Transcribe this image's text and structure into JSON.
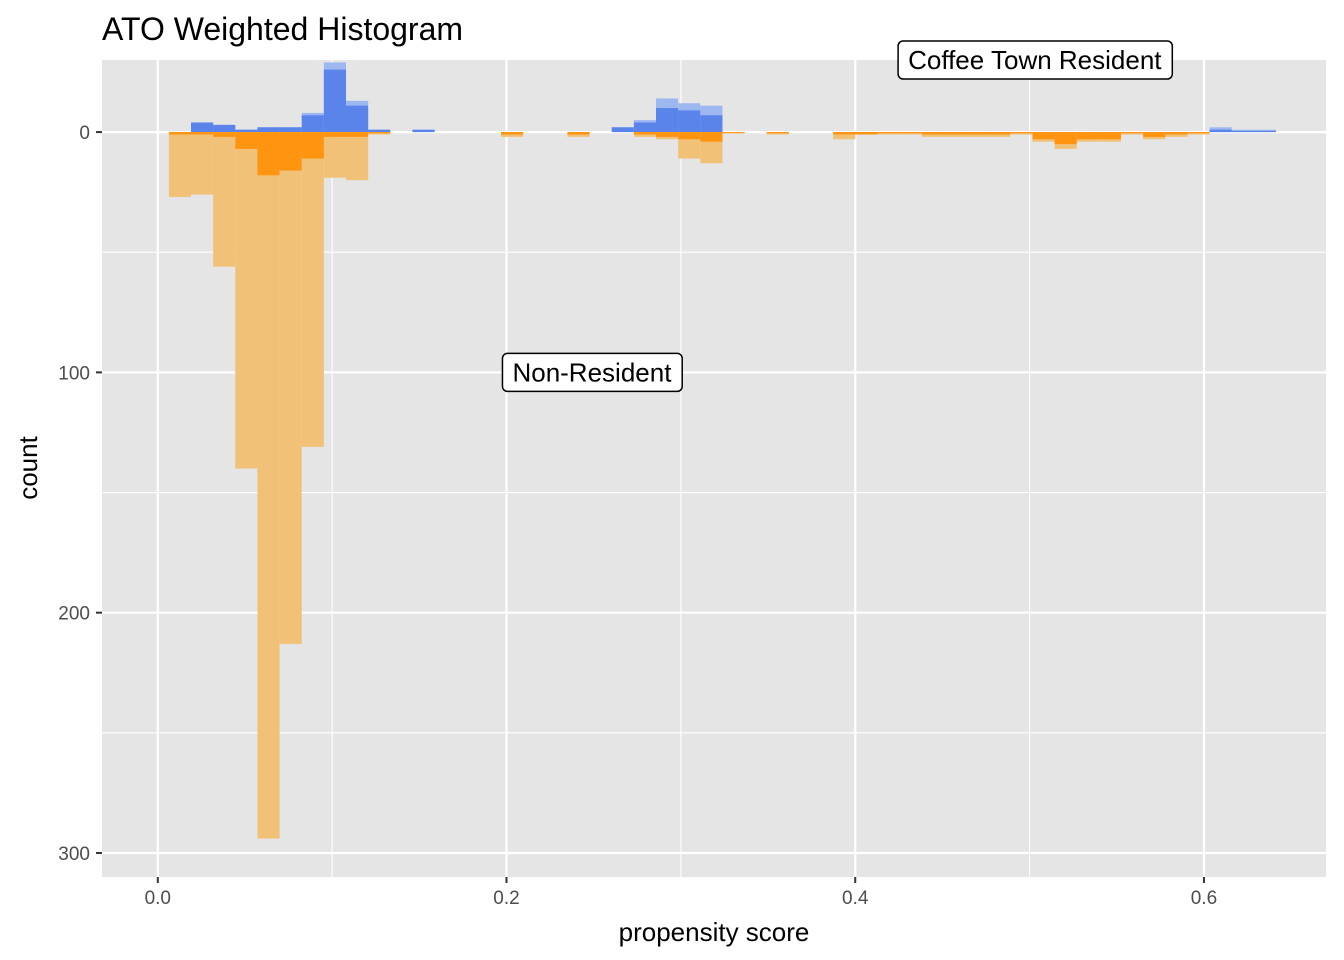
{
  "chart_data": {
    "type": "histogram",
    "title": "ATO Weighted Histogram",
    "xlabel": "propensity score",
    "ylabel": "count",
    "xlim": [
      -0.032,
      0.67
    ],
    "ylim": [
      -30,
      310
    ],
    "y_reversed": true,
    "x_ticks": [
      {
        "value": 0.0,
        "label": "0.0"
      },
      {
        "value": 0.2,
        "label": "0.2"
      },
      {
        "value": 0.4,
        "label": "0.4"
      },
      {
        "value": 0.6,
        "label": "0.6"
      }
    ],
    "y_ticks": [
      {
        "value": 0,
        "label": "0"
      },
      {
        "value": 100,
        "label": "100"
      },
      {
        "value": 200,
        "label": "200"
      },
      {
        "value": 300,
        "label": "300"
      }
    ],
    "grid": true,
    "bin_width": 0.0127,
    "bin_start": 0.0063,
    "colors": {
      "panel": "#e5e5e5",
      "grid_major": "#ffffff",
      "resident_unweighted": "#9db7f0",
      "resident_weighted": "#5b84ea",
      "nonresident_unweighted": "#f2c178",
      "nonresident_weighted": "#ff9411"
    },
    "series": [
      {
        "group": "resident_unweighted",
        "direction": "up",
        "bins": [
          {
            "x": 0.0254,
            "count": 4
          },
          {
            "x": 0.0381,
            "count": 3
          },
          {
            "x": 0.0508,
            "count": 1
          },
          {
            "x": 0.0635,
            "count": 2
          },
          {
            "x": 0.0762,
            "count": 2
          },
          {
            "x": 0.0889,
            "count": 8
          },
          {
            "x": 0.1016,
            "count": 29
          },
          {
            "x": 0.1143,
            "count": 13
          },
          {
            "x": 0.127,
            "count": 1
          },
          {
            "x": 0.1524,
            "count": 1
          },
          {
            "x": 0.2667,
            "count": 2
          },
          {
            "x": 0.2794,
            "count": 5
          },
          {
            "x": 0.2921,
            "count": 14
          },
          {
            "x": 0.3048,
            "count": 12
          },
          {
            "x": 0.3175,
            "count": 11
          },
          {
            "x": 0.6096,
            "count": 2
          },
          {
            "x": 0.6223,
            "count": 1
          },
          {
            "x": 0.635,
            "count": 1
          }
        ]
      },
      {
        "group": "resident_weighted",
        "direction": "up",
        "bins": [
          {
            "x": 0.0254,
            "count": 4
          },
          {
            "x": 0.0381,
            "count": 3
          },
          {
            "x": 0.0508,
            "count": 1
          },
          {
            "x": 0.0635,
            "count": 2
          },
          {
            "x": 0.0762,
            "count": 2
          },
          {
            "x": 0.0889,
            "count": 7
          },
          {
            "x": 0.1016,
            "count": 26
          },
          {
            "x": 0.1143,
            "count": 11
          },
          {
            "x": 0.127,
            "count": 1
          },
          {
            "x": 0.1524,
            "count": 1
          },
          {
            "x": 0.2667,
            "count": 2
          },
          {
            "x": 0.2794,
            "count": 4
          },
          {
            "x": 0.2921,
            "count": 10
          },
          {
            "x": 0.3048,
            "count": 9
          },
          {
            "x": 0.3175,
            "count": 7
          },
          {
            "x": 0.6096,
            "count": 1
          },
          {
            "x": 0.6223,
            "count": 0.5
          },
          {
            "x": 0.635,
            "count": 0.5
          }
        ]
      },
      {
        "group": "nonresident_unweighted",
        "direction": "down",
        "bins": [
          {
            "x": 0.0127,
            "count": 27
          },
          {
            "x": 0.0254,
            "count": 26
          },
          {
            "x": 0.0381,
            "count": 56
          },
          {
            "x": 0.0508,
            "count": 140
          },
          {
            "x": 0.0635,
            "count": 294
          },
          {
            "x": 0.0762,
            "count": 213
          },
          {
            "x": 0.0889,
            "count": 131
          },
          {
            "x": 0.1016,
            "count": 19
          },
          {
            "x": 0.1143,
            "count": 20
          },
          {
            "x": 0.127,
            "count": 1
          },
          {
            "x": 0.2032,
            "count": 2
          },
          {
            "x": 0.2413,
            "count": 2
          },
          {
            "x": 0.2794,
            "count": 2
          },
          {
            "x": 0.2921,
            "count": 3
          },
          {
            "x": 0.3048,
            "count": 11
          },
          {
            "x": 0.3175,
            "count": 13
          },
          {
            "x": 0.3556,
            "count": 1
          },
          {
            "x": 0.3937,
            "count": 3
          },
          {
            "x": 0.4064,
            "count": 1
          },
          {
            "x": 0.4191,
            "count": 1
          },
          {
            "x": 0.4318,
            "count": 1
          },
          {
            "x": 0.4445,
            "count": 2
          },
          {
            "x": 0.4572,
            "count": 2
          },
          {
            "x": 0.4699,
            "count": 2
          },
          {
            "x": 0.4826,
            "count": 2
          },
          {
            "x": 0.4953,
            "count": 1
          },
          {
            "x": 0.508,
            "count": 4
          },
          {
            "x": 0.5207,
            "count": 7
          },
          {
            "x": 0.5334,
            "count": 4
          },
          {
            "x": 0.5461,
            "count": 4
          },
          {
            "x": 0.5588,
            "count": 1
          },
          {
            "x": 0.5715,
            "count": 3
          },
          {
            "x": 0.5842,
            "count": 2
          },
          {
            "x": 0.5969,
            "count": 1
          }
        ]
      },
      {
        "group": "nonresident_weighted",
        "direction": "down",
        "bins": [
          {
            "x": 0.0127,
            "count": 1
          },
          {
            "x": 0.0254,
            "count": 1
          },
          {
            "x": 0.0381,
            "count": 2
          },
          {
            "x": 0.0508,
            "count": 7
          },
          {
            "x": 0.0635,
            "count": 18
          },
          {
            "x": 0.0762,
            "count": 16
          },
          {
            "x": 0.0889,
            "count": 11
          },
          {
            "x": 0.1016,
            "count": 2
          },
          {
            "x": 0.1143,
            "count": 2
          },
          {
            "x": 0.127,
            "count": 0.5
          },
          {
            "x": 0.2032,
            "count": 1
          },
          {
            "x": 0.2413,
            "count": 1
          },
          {
            "x": 0.2794,
            "count": 1
          },
          {
            "x": 0.2921,
            "count": 2
          },
          {
            "x": 0.3048,
            "count": 3
          },
          {
            "x": 0.3175,
            "count": 4
          },
          {
            "x": 0.3302,
            "count": 0.5
          },
          {
            "x": 0.3556,
            "count": 0.5
          },
          {
            "x": 0.3937,
            "count": 1
          },
          {
            "x": 0.4064,
            "count": 1
          },
          {
            "x": 0.4191,
            "count": 0.5
          },
          {
            "x": 0.4318,
            "count": 0.5
          },
          {
            "x": 0.4445,
            "count": 1
          },
          {
            "x": 0.4572,
            "count": 1
          },
          {
            "x": 0.4699,
            "count": 1
          },
          {
            "x": 0.4826,
            "count": 1
          },
          {
            "x": 0.4953,
            "count": 0.5
          },
          {
            "x": 0.508,
            "count": 3
          },
          {
            "x": 0.5207,
            "count": 5
          },
          {
            "x": 0.5334,
            "count": 3
          },
          {
            "x": 0.5461,
            "count": 3
          },
          {
            "x": 0.5588,
            "count": 0.5
          },
          {
            "x": 0.5715,
            "count": 2
          },
          {
            "x": 0.5842,
            "count": 1
          },
          {
            "x": 0.5969,
            "count": 0.5
          }
        ]
      }
    ],
    "annotations": [
      {
        "name": "annotation-resident",
        "text": "Coffee Town Resident",
        "x": 0.503,
        "y": -30
      },
      {
        "name": "annotation-nonresident",
        "text": "Non-Resident",
        "x": 0.249,
        "y": 100
      }
    ]
  }
}
